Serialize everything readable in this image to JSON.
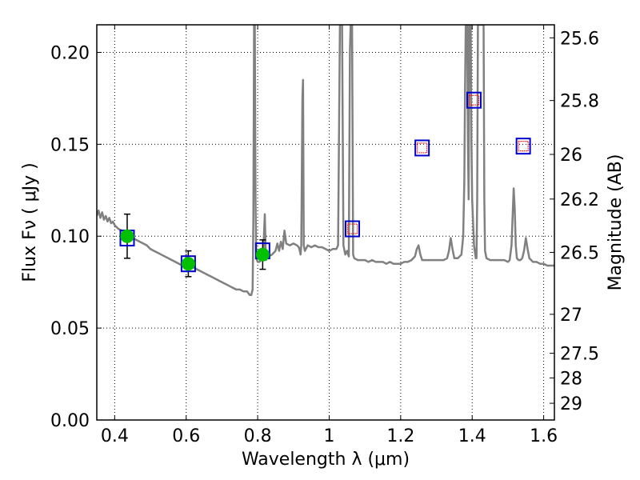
{
  "chart_data": {
    "type": "line",
    "xlabel": "Wavelength  λ (μm)",
    "ylabel": "Flux  Fν  ( μJy )",
    "y2label": "Magnitude (AB)",
    "xlim": [
      0.35,
      1.63
    ],
    "ylim": [
      0.0,
      0.215
    ],
    "grid": true,
    "x_ticks": [
      {
        "value": 0.4,
        "label": "0.4"
      },
      {
        "value": 0.6,
        "label": "0.6"
      },
      {
        "value": 0.8,
        "label": "0.8"
      },
      {
        "value": 1.0,
        "label": "1"
      },
      {
        "value": 1.2,
        "label": "1.2"
      },
      {
        "value": 1.4,
        "label": "1.4"
      },
      {
        "value": 1.6,
        "label": "1.6"
      }
    ],
    "y_ticks": [
      {
        "value": 0.0,
        "label": "0.00"
      },
      {
        "value": 0.05,
        "label": "0.05"
      },
      {
        "value": 0.1,
        "label": "0.10"
      },
      {
        "value": 0.15,
        "label": "0.15"
      },
      {
        "value": 0.2,
        "label": "0.20"
      }
    ],
    "mag_ticks": [
      {
        "flux": 0.2079,
        "label": "25.6"
      },
      {
        "flux": 0.1738,
        "label": "25.8"
      },
      {
        "flux": 0.1445,
        "label": "26"
      },
      {
        "flux": 0.1202,
        "label": "26.2"
      },
      {
        "flux": 0.0912,
        "label": "26.5"
      },
      {
        "flux": 0.0575,
        "label": "27"
      },
      {
        "flux": 0.0363,
        "label": "27.5"
      },
      {
        "flux": 0.0229,
        "label": "28"
      },
      {
        "flux": 0.0091,
        "label": "29"
      }
    ],
    "series": [
      {
        "type": "line",
        "color": "#808080",
        "points": [
          [
            0.35,
            0.111
          ],
          [
            0.355,
            0.114
          ],
          [
            0.36,
            0.11
          ],
          [
            0.365,
            0.113
          ],
          [
            0.37,
            0.109
          ],
          [
            0.375,
            0.111
          ],
          [
            0.38,
            0.108
          ],
          [
            0.385,
            0.11
          ],
          [
            0.39,
            0.107
          ],
          [
            0.395,
            0.108
          ],
          [
            0.4,
            0.106
          ],
          [
            0.41,
            0.104
          ],
          [
            0.42,
            0.103
          ],
          [
            0.43,
            0.102
          ],
          [
            0.44,
            0.1
          ],
          [
            0.45,
            0.099
          ],
          [
            0.46,
            0.098
          ],
          [
            0.47,
            0.097
          ],
          [
            0.48,
            0.096
          ],
          [
            0.49,
            0.095
          ],
          [
            0.5,
            0.093
          ],
          [
            0.51,
            0.092
          ],
          [
            0.52,
            0.091
          ],
          [
            0.53,
            0.09
          ],
          [
            0.54,
            0.089
          ],
          [
            0.55,
            0.088
          ],
          [
            0.56,
            0.087
          ],
          [
            0.57,
            0.086
          ],
          [
            0.58,
            0.085
          ],
          [
            0.59,
            0.084
          ],
          [
            0.598,
            0.083
          ],
          [
            0.6,
            0.09
          ],
          [
            0.603,
            0.083
          ],
          [
            0.61,
            0.084
          ],
          [
            0.62,
            0.083
          ],
          [
            0.63,
            0.082
          ],
          [
            0.64,
            0.081
          ],
          [
            0.65,
            0.08
          ],
          [
            0.66,
            0.079
          ],
          [
            0.67,
            0.078
          ],
          [
            0.68,
            0.077
          ],
          [
            0.69,
            0.076
          ],
          [
            0.7,
            0.075
          ],
          [
            0.71,
            0.074
          ],
          [
            0.72,
            0.073
          ],
          [
            0.73,
            0.072
          ],
          [
            0.74,
            0.071
          ],
          [
            0.75,
            0.071
          ],
          [
            0.76,
            0.07
          ],
          [
            0.77,
            0.07
          ],
          [
            0.778,
            0.068
          ],
          [
            0.782,
            0.068
          ],
          [
            0.786,
            0.071
          ],
          [
            0.788,
            0.11
          ],
          [
            0.79,
            0.215
          ],
          [
            0.792,
            0.215
          ],
          [
            0.794,
            0.12
          ],
          [
            0.796,
            0.088
          ],
          [
            0.8,
            0.086
          ],
          [
            0.805,
            0.086
          ],
          [
            0.81,
            0.087
          ],
          [
            0.815,
            0.088
          ],
          [
            0.82,
            0.112
          ],
          [
            0.823,
            0.087
          ],
          [
            0.83,
            0.089
          ],
          [
            0.84,
            0.09
          ],
          [
            0.85,
            0.092
          ],
          [
            0.855,
            0.096
          ],
          [
            0.86,
            0.092
          ],
          [
            0.865,
            0.097
          ],
          [
            0.87,
            0.093
          ],
          [
            0.875,
            0.103
          ],
          [
            0.88,
            0.096
          ],
          [
            0.89,
            0.095
          ],
          [
            0.9,
            0.096
          ],
          [
            0.91,
            0.095
          ],
          [
            0.915,
            0.094
          ],
          [
            0.918,
            0.092
          ],
          [
            0.92,
            0.09
          ],
          [
            0.922,
            0.095
          ],
          [
            0.925,
            0.175
          ],
          [
            0.927,
            0.185
          ],
          [
            0.929,
            0.095
          ],
          [
            0.932,
            0.092
          ],
          [
            0.94,
            0.095
          ],
          [
            0.95,
            0.094
          ],
          [
            0.96,
            0.095
          ],
          [
            0.97,
            0.094
          ],
          [
            0.98,
            0.094
          ],
          [
            0.99,
            0.093
          ],
          [
            1.0,
            0.092
          ],
          [
            1.01,
            0.093
          ],
          [
            1.02,
            0.093
          ],
          [
            1.025,
            0.095
          ],
          [
            1.03,
            0.215
          ],
          [
            1.036,
            0.215
          ],
          [
            1.04,
            0.095
          ],
          [
            1.045,
            0.09
          ],
          [
            1.05,
            0.092
          ],
          [
            1.055,
            0.089
          ],
          [
            1.058,
            0.2
          ],
          [
            1.06,
            0.215
          ],
          [
            1.064,
            0.215
          ],
          [
            1.067,
            0.09
          ],
          [
            1.07,
            0.088
          ],
          [
            1.08,
            0.087
          ],
          [
            1.09,
            0.087
          ],
          [
            1.1,
            0.087
          ],
          [
            1.11,
            0.086
          ],
          [
            1.12,
            0.087
          ],
          [
            1.13,
            0.086
          ],
          [
            1.14,
            0.086
          ],
          [
            1.15,
            0.086
          ],
          [
            1.16,
            0.085
          ],
          [
            1.17,
            0.086
          ],
          [
            1.18,
            0.085
          ],
          [
            1.19,
            0.085
          ],
          [
            1.2,
            0.085
          ],
          [
            1.21,
            0.086
          ],
          [
            1.22,
            0.086
          ],
          [
            1.23,
            0.087
          ],
          [
            1.24,
            0.089
          ],
          [
            1.245,
            0.093
          ],
          [
            1.25,
            0.095
          ],
          [
            1.255,
            0.09
          ],
          [
            1.26,
            0.087
          ],
          [
            1.27,
            0.087
          ],
          [
            1.28,
            0.087
          ],
          [
            1.29,
            0.087
          ],
          [
            1.3,
            0.087
          ],
          [
            1.31,
            0.087
          ],
          [
            1.32,
            0.087
          ],
          [
            1.33,
            0.088
          ],
          [
            1.335,
            0.092
          ],
          [
            1.34,
            0.099
          ],
          [
            1.345,
            0.093
          ],
          [
            1.35,
            0.088
          ],
          [
            1.36,
            0.088
          ],
          [
            1.37,
            0.09
          ],
          [
            1.375,
            0.1
          ],
          [
            1.378,
            0.13
          ],
          [
            1.38,
            0.18
          ],
          [
            1.382,
            0.215
          ],
          [
            1.386,
            0.215
          ],
          [
            1.388,
            0.15
          ],
          [
            1.39,
            0.12
          ],
          [
            1.392,
            0.215
          ],
          [
            1.396,
            0.215
          ],
          [
            1.398,
            0.15
          ],
          [
            1.4,
            0.12
          ],
          [
            1.405,
            0.095
          ],
          [
            1.41,
            0.088
          ],
          [
            1.412,
            0.088
          ],
          [
            1.414,
            0.12
          ],
          [
            1.416,
            0.215
          ],
          [
            1.432,
            0.215
          ],
          [
            1.434,
            0.12
          ],
          [
            1.436,
            0.092
          ],
          [
            1.44,
            0.088
          ],
          [
            1.45,
            0.087
          ],
          [
            1.46,
            0.087
          ],
          [
            1.47,
            0.087
          ],
          [
            1.48,
            0.087
          ],
          [
            1.49,
            0.087
          ],
          [
            1.5,
            0.086
          ],
          [
            1.505,
            0.087
          ],
          [
            1.51,
            0.095
          ],
          [
            1.513,
            0.11
          ],
          [
            1.516,
            0.126
          ],
          [
            1.519,
            0.115
          ],
          [
            1.522,
            0.095
          ],
          [
            1.525,
            0.088
          ],
          [
            1.53,
            0.087
          ],
          [
            1.535,
            0.087
          ],
          [
            1.54,
            0.088
          ],
          [
            1.545,
            0.092
          ],
          [
            1.55,
            0.099
          ],
          [
            1.555,
            0.093
          ],
          [
            1.56,
            0.088
          ],
          [
            1.57,
            0.086
          ],
          [
            1.58,
            0.086
          ],
          [
            1.59,
            0.085
          ],
          [
            1.6,
            0.085
          ],
          [
            1.61,
            0.084
          ],
          [
            1.62,
            0.084
          ],
          [
            1.63,
            0.084
          ]
        ]
      }
    ],
    "measured_points": [
      {
        "x": 0.435,
        "y": 0.1,
        "yerr": 0.012,
        "color": "#00c000"
      },
      {
        "x": 0.606,
        "y": 0.085,
        "yerr": 0.007,
        "color": "#00c000"
      },
      {
        "x": 0.814,
        "y": 0.09,
        "yerr": 0.008,
        "color": "#00c000"
      }
    ],
    "model_points": [
      {
        "x": 0.435,
        "y": 0.099,
        "color": "#0000cc"
      },
      {
        "x": 0.606,
        "y": 0.085,
        "color": "#0000cc"
      },
      {
        "x": 0.814,
        "y": 0.092,
        "color": "#0000cc"
      },
      {
        "x": 1.065,
        "y": 0.104,
        "color": "#0000cc"
      },
      {
        "x": 1.26,
        "y": 0.148,
        "color": "#0000cc"
      },
      {
        "x": 1.405,
        "y": 0.174,
        "color": "#0000cc"
      },
      {
        "x": 1.543,
        "y": 0.149,
        "color": "#0000cc"
      }
    ],
    "upper_points": [
      {
        "x": 1.065,
        "y": 0.104,
        "color": "#ff0000"
      },
      {
        "x": 1.26,
        "y": 0.148,
        "color": "#ff0000"
      },
      {
        "x": 1.405,
        "y": 0.174,
        "color": "#ff0000"
      },
      {
        "x": 1.543,
        "y": 0.149,
        "color": "#ff0000"
      }
    ]
  }
}
